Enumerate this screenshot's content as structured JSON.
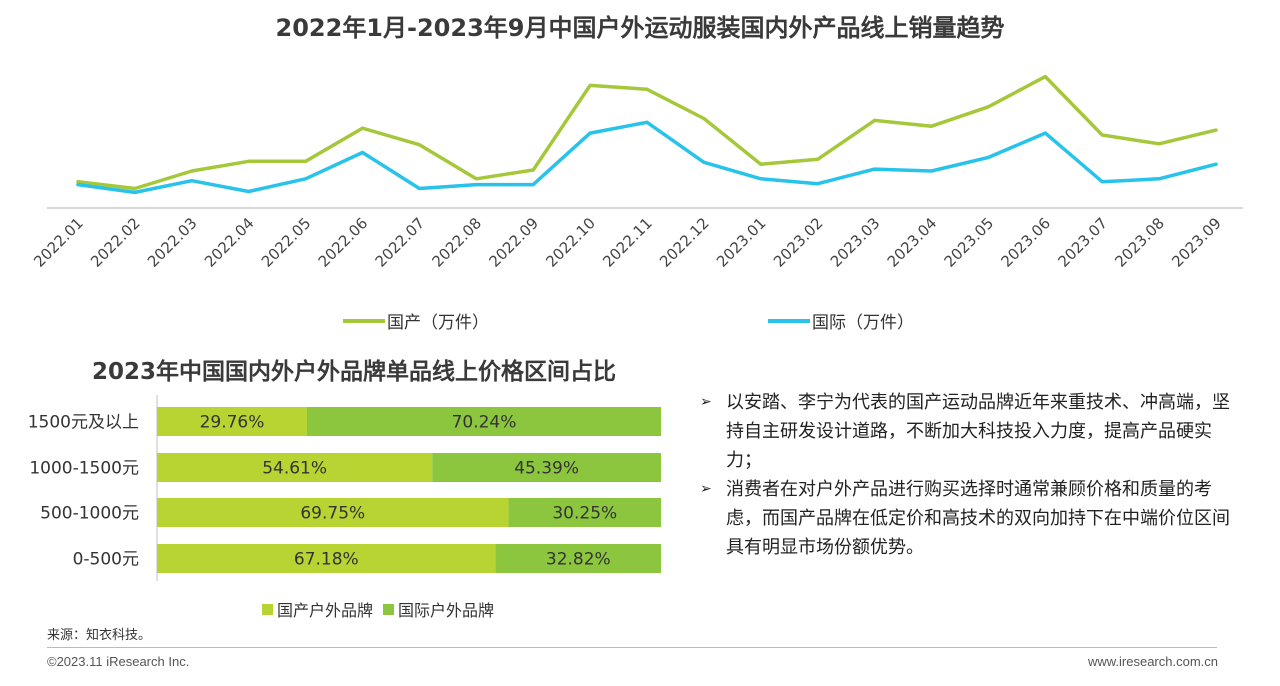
{
  "line_section": {
    "title": "2022年1月-2023年9月中国户外运动服装国内外产品线上销量趋势"
  },
  "bar_section": {
    "title": "2023年中国国内外户外品牌单品线上价格区间占比"
  },
  "notes": [
    "以安踏、李宁为代表的国产运动品牌近年来重技术、冲高端，坚持自主研发设计道路，不断加大科技投入力度，提高产品硬实力；",
    "消费者在对户外产品进行购买选择时通常兼顾价格和质量的考虑，而国产品牌在低定价和高技术的双向加持下在中端价位区间具有明显市场份额优势。"
  ],
  "source": "来源：知衣科技。",
  "copyright": "©2023.11 iResearch Inc.",
  "website": "www.iresearch.com.cn",
  "chart_data": [
    {
      "type": "line",
      "title": "2022年1月-2023年9月中国户外运动服装国内外产品线上销量趋势",
      "x": [
        "2022.01",
        "2022.02",
        "2022.03",
        "2022.04",
        "2022.05",
        "2022.06",
        "2022.07",
        "2022.08",
        "2022.09",
        "2022.10",
        "2022.11",
        "2022.12",
        "2023.01",
        "2023.02",
        "2023.03",
        "2023.04",
        "2023.05",
        "2023.06",
        "2023.07",
        "2023.08",
        "2023.09"
      ],
      "series": [
        {
          "name": "国产（万件）",
          "color": "#a5c83b",
          "values": [
            27,
            20,
            38,
            48,
            48,
            82,
            65,
            30,
            39,
            126,
            122,
            92,
            45,
            50,
            90,
            84,
            104,
            135,
            75,
            66,
            80
          ]
        },
        {
          "name": "国际（万件）",
          "color": "#27c3ea",
          "values": [
            24,
            16,
            28,
            17,
            30,
            57,
            20,
            24,
            24,
            77,
            88,
            47,
            30,
            25,
            40,
            38,
            52,
            77,
            27,
            30,
            45
          ]
        }
      ],
      "ylim": [
        0,
        150
      ],
      "grid": false,
      "legend": "bottom"
    },
    {
      "type": "bar",
      "orientation": "horizontal",
      "stacked": true,
      "title": "2023年中国国内外户外品牌单品线上价格区间占比",
      "categories": [
        "1500元及以上",
        "1000-1500元",
        "500-1000元",
        "0-500元"
      ],
      "series": [
        {
          "name": "国产户外品牌",
          "color": "#b7d432",
          "values": [
            29.76,
            54.61,
            69.75,
            67.18
          ],
          "labels": [
            "29.76%",
            "54.61%",
            "69.75%",
            "67.18%"
          ]
        },
        {
          "name": "国际户外品牌",
          "color": "#8cc63f",
          "values": [
            70.24,
            45.39,
            30.25,
            32.82
          ],
          "labels": [
            "70.24%",
            "45.39%",
            "30.25%",
            "32.82%"
          ]
        }
      ],
      "xlim": [
        0,
        100
      ],
      "legend": "bottom"
    }
  ]
}
